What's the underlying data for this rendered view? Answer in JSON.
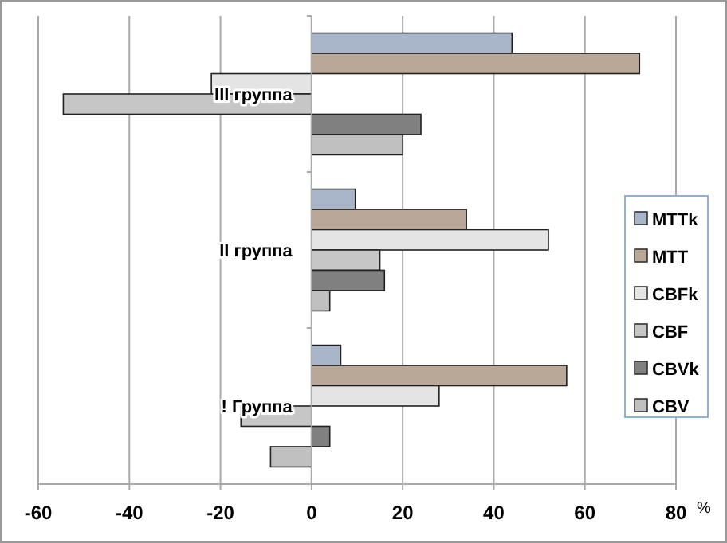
{
  "chart_data": {
    "type": "bar",
    "orientation": "horizontal",
    "categories": [
      "III группа",
      "II группа",
      "! Группа"
    ],
    "series": [
      {
        "name": "MTTk",
        "color": "#a9b5c9",
        "values": [
          44,
          9.6,
          6.4
        ]
      },
      {
        "name": "MTT",
        "color": "#b9a898",
        "values": [
          72,
          34,
          56
        ]
      },
      {
        "name": "CBFk",
        "color": "#e4e4e4",
        "values": [
          -22,
          52,
          28
        ]
      },
      {
        "name": "CBF",
        "color": "#c6c6c6",
        "values": [
          -54.5,
          15,
          -15.5
        ]
      },
      {
        "name": "CBVk",
        "color": "#808080",
        "values": [
          24,
          16,
          4
        ]
      },
      {
        "name": "CBV",
        "color": "#c0c0c0",
        "values": [
          20,
          4,
          -9
        ]
      }
    ],
    "xlim": [
      -60,
      80
    ],
    "xticks": [
      -60,
      -40,
      -20,
      0,
      20,
      40,
      60,
      80
    ],
    "xlabel": "%",
    "grid": "x",
    "legend": "right"
  }
}
